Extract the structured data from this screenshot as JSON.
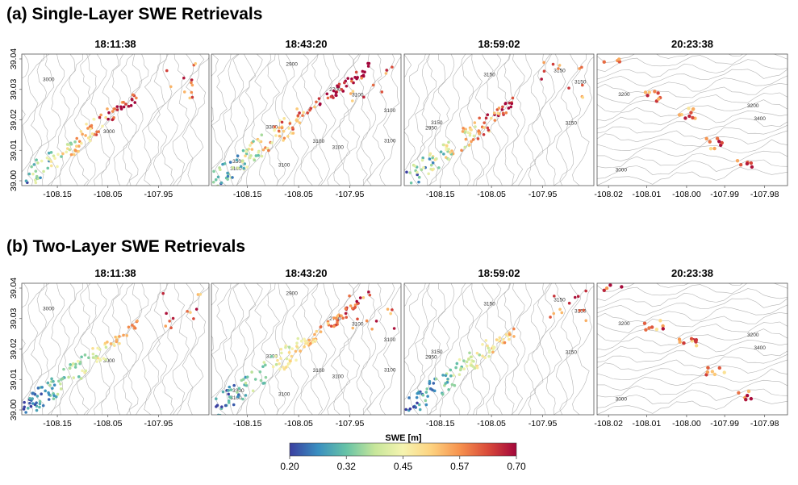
{
  "panels": [
    {
      "title": "(a) Single-Layer SWE Retrievals",
      "maps": [
        {
          "time": "18:11:38",
          "xticks": [
            "-108.15",
            "-108.05",
            "-107.95"
          ],
          "contour_labels": [
            "3000",
            "3000"
          ]
        },
        {
          "time": "18:43:20",
          "xticks": [
            "-108.15",
            "-108.05",
            "-107.95"
          ],
          "contour_labels": [
            "3300",
            "3300",
            "3100",
            "3100",
            "3100",
            "3100",
            "3100",
            "3100",
            "3100",
            "2700",
            "2900"
          ]
        },
        {
          "time": "18:59:02",
          "xticks": [
            "-108.15",
            "-108.05",
            "-107.95"
          ],
          "contour_labels": [
            "2950",
            "3150",
            "3150",
            "3150",
            "3150",
            "3150"
          ]
        },
        {
          "time": "20:23:38",
          "xticks": [
            "-108.02",
            "-108.01",
            "-108.00",
            "-107.99",
            "-107.98"
          ],
          "contour_labels": [
            "3200",
            "3400",
            "3200",
            "3000"
          ]
        }
      ]
    },
    {
      "title": "(b) Two-Layer SWE Retrievals",
      "maps": [
        {
          "time": "18:11:38",
          "xticks": [
            "-108.15",
            "-108.05",
            "-107.95"
          ],
          "contour_labels": [
            "3000",
            "3000"
          ]
        },
        {
          "time": "18:43:20",
          "xticks": [
            "-108.15",
            "-108.05",
            "-107.95"
          ],
          "contour_labels": [
            "3300",
            "3300",
            "3100",
            "3100",
            "3100",
            "3100",
            "3100",
            "3100",
            "3100",
            "2700",
            "2900"
          ]
        },
        {
          "time": "18:59:02",
          "xticks": [
            "-108.15",
            "-108.05",
            "-107.95"
          ],
          "contour_labels": [
            "2950",
            "3150",
            "3150",
            "3150",
            "3150",
            "3150"
          ]
        },
        {
          "time": "20:23:38",
          "xticks": [
            "-108.02",
            "-108.01",
            "-108.00",
            "-107.99",
            "-107.98"
          ],
          "contour_labels": [
            "3200",
            "3400",
            "3200",
            "3000"
          ]
        }
      ]
    }
  ],
  "yticks": [
    "39.00",
    "39.01",
    "39.02",
    "39.03",
    "39.04"
  ],
  "colorbar": {
    "label": "SWE [m]",
    "ticks": [
      "0.20",
      "0.32",
      "0.45",
      "0.57",
      "0.70"
    ],
    "stops": [
      "#3b3fa0",
      "#3a8fc0",
      "#67c3a6",
      "#c6e69a",
      "#f6f4b0",
      "#fdd27f",
      "#f6924e",
      "#d94a3a",
      "#a3063b"
    ]
  },
  "chart_data": {
    "type": "scatter",
    "description_units": "SWE in meters, longitude/latitude axes",
    "ylim": [
      39.0,
      39.04
    ],
    "color_range": [
      0.2,
      0.7
    ],
    "panels": [
      "(a) Single-Layer SWE Retrievals",
      "(b) Two-Layer SWE Retrievals"
    ],
    "times": [
      "18:11:38",
      "18:43:20",
      "18:59:02",
      "20:23:38"
    ]
  }
}
